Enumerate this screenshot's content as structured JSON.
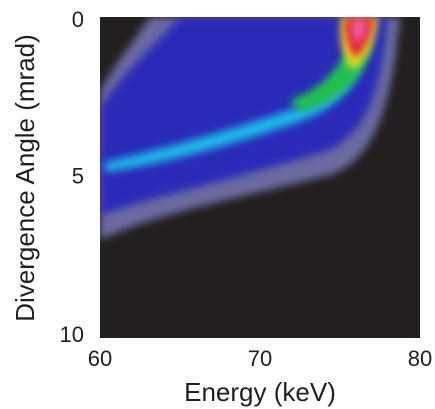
{
  "chart_data": {
    "type": "heatmap",
    "xlabel": "Energy (keV)",
    "ylabel": "Divergence Angle (mrad)",
    "xlim": [
      60,
      80
    ],
    "xticks": [
      60,
      70,
      80
    ],
    "ylim": [
      0,
      10
    ],
    "yticks": [
      0,
      5,
      10
    ],
    "y_inverted": true,
    "background_color": "#231f20"
  }
}
